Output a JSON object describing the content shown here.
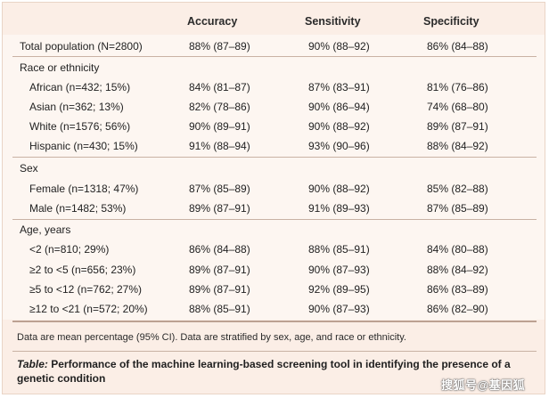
{
  "columns": {
    "accuracy": "Accuracy",
    "sensitivity": "Sensitivity",
    "specificity": "Specificity"
  },
  "total": {
    "label": "Total population (N=2800)",
    "accuracy": "88% (87–89)",
    "sensitivity": "90% (88–92)",
    "specificity": "86% (84–88)"
  },
  "groups": [
    {
      "title": "Race or ethnicity",
      "rows": [
        {
          "label": "African (n=432; 15%)",
          "accuracy": "84% (81–87)",
          "sensitivity": "87% (83–91)",
          "specificity": "81% (76–86)"
        },
        {
          "label": "Asian (n=362; 13%)",
          "accuracy": "82% (78–86)",
          "sensitivity": "90% (86–94)",
          "specificity": "74% (68–80)"
        },
        {
          "label": "White (n=1576; 56%)",
          "accuracy": "90% (89–91)",
          "sensitivity": "90% (88–92)",
          "specificity": "89% (87–91)"
        },
        {
          "label": "Hispanic (n=430; 15%)",
          "accuracy": "91% (88–94)",
          "sensitivity": "93% (90–96)",
          "specificity": "88% (84–92)"
        }
      ]
    },
    {
      "title": "Sex",
      "rows": [
        {
          "label": "Female (n=1318; 47%)",
          "accuracy": "87% (85–89)",
          "sensitivity": "90% (88–92)",
          "specificity": "85% (82–88)"
        },
        {
          "label": "Male (n=1482; 53%)",
          "accuracy": "89% (87–91)",
          "sensitivity": "91% (89–93)",
          "specificity": "87% (85–89)"
        }
      ]
    },
    {
      "title": "Age, years",
      "rows": [
        {
          "label": "<2 (n=810; 29%)",
          "accuracy": "86% (84–88)",
          "sensitivity": "88% (85–91)",
          "specificity": "84% (80–88)"
        },
        {
          "label": "≥2 to <5 (n=656; 23%)",
          "accuracy": "89% (87–91)",
          "sensitivity": "90% (87–93)",
          "specificity": "88% (84–92)"
        },
        {
          "label": "≥5 to <12 (n=762; 27%)",
          "accuracy": "89% (87–91)",
          "sensitivity": "92% (89–95)",
          "specificity": "86% (83–89)"
        },
        {
          "label": "≥12 to <21 (n=572; 20%)",
          "accuracy": "88% (85–91)",
          "sensitivity": "90% (87–93)",
          "specificity": "86% (82–90)"
        }
      ]
    }
  ],
  "footnote": "Data are mean percentage (95% CI). Data are stratified by sex, age, and race or ethnicity.",
  "caption": {
    "label": "Table:",
    "text": " Performance of the machine learning-based screening tool in identifying the presence of a genetic condition"
  },
  "watermark": "搜狐号@基因狐"
}
